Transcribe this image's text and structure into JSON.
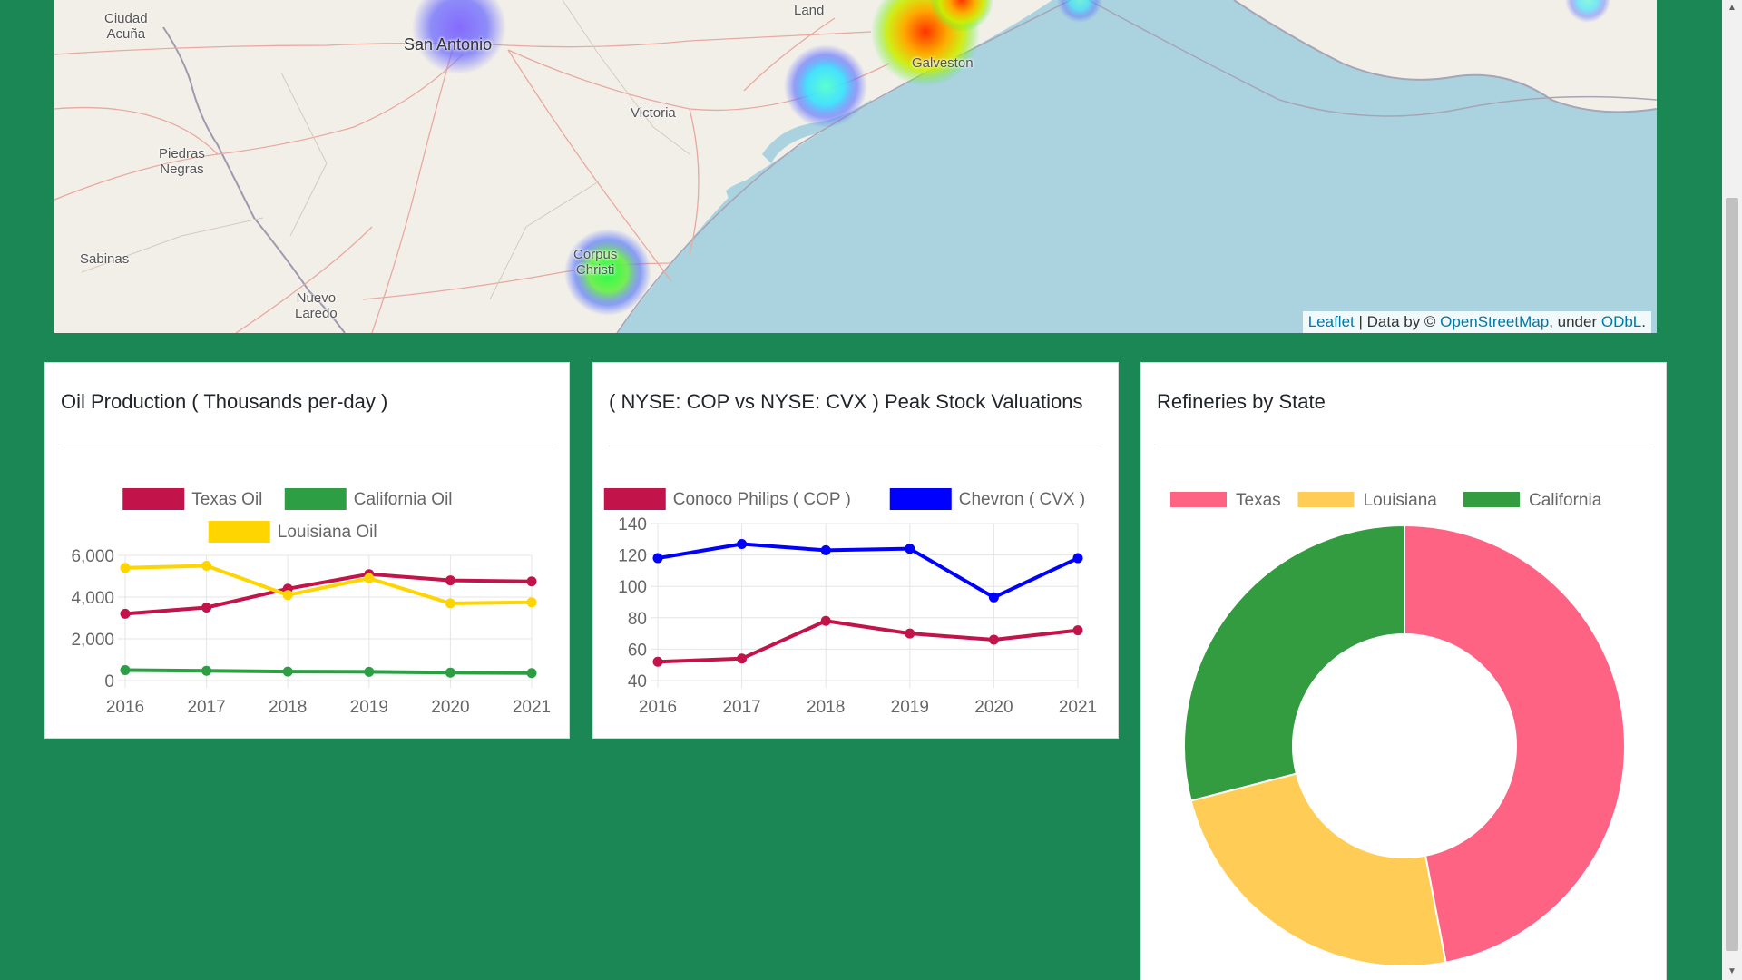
{
  "map": {
    "places": [
      {
        "name": "Ciudad\nAcuña",
        "size": "small"
      },
      {
        "name": "San Antonio",
        "size": "big"
      },
      {
        "name": "Land",
        "size": "small"
      },
      {
        "name": "Galveston",
        "size": "small"
      },
      {
        "name": "Victoria",
        "size": "small"
      },
      {
        "name": "Piedras\nNegras",
        "size": "small"
      },
      {
        "name": "Sabinas",
        "size": "small"
      },
      {
        "name": "Nuevo\nLaredo",
        "size": "small"
      },
      {
        "name": "Corpus\nChristi",
        "size": "small"
      }
    ],
    "attribution": {
      "leaflet": "Leaflet",
      "data_by": " | Data by © ",
      "osm": "OpenStreetMap",
      "under": ", under ",
      "odbl": "ODbL",
      "end": "."
    }
  },
  "cards": {
    "oil": {
      "title": "Oil Production ( Thousands per-day )"
    },
    "stock": {
      "title": "( NYSE: COP vs NYSE: CVX ) Peak Stock Valuations"
    },
    "refineries": {
      "title": "Refineries by State"
    }
  },
  "chart_data": [
    {
      "type": "line",
      "title": "Oil Production ( Thousands per-day )",
      "x": [
        "2016",
        "2017",
        "2018",
        "2019",
        "2020",
        "2021"
      ],
      "ylim": [
        0,
        6000
      ],
      "yticks": [
        "6,000",
        "4,000",
        "2,000",
        "0"
      ],
      "legend": "top",
      "grid": true,
      "series": [
        {
          "name": "Texas Oil",
          "color": "#c2134a",
          "values": [
            3200,
            3500,
            4400,
            5100,
            4800,
            4750
          ]
        },
        {
          "name": "California Oil",
          "color": "#2e9e45",
          "values": [
            500,
            470,
            430,
            420,
            380,
            360
          ]
        },
        {
          "name": "Louisiana Oil",
          "color": "#ffd500",
          "values": [
            5400,
            5500,
            4100,
            4900,
            3700,
            3750
          ]
        }
      ]
    },
    {
      "type": "line",
      "title": "( NYSE: COP vs NYSE: CVX ) Peak Stock Valuations",
      "x": [
        "2016",
        "2017",
        "2018",
        "2019",
        "2020",
        "2021"
      ],
      "ylim": [
        40,
        140
      ],
      "yticks": [
        "140",
        "120",
        "100",
        "80",
        "60",
        "40"
      ],
      "legend": "top",
      "grid": true,
      "series": [
        {
          "name": "Conoco Philips ( COP )",
          "color": "#c2134a",
          "values": [
            52,
            54,
            78,
            70,
            66,
            72
          ]
        },
        {
          "name": "Chevron ( CVX )",
          "color": "#0000ff",
          "values": [
            118,
            127,
            123,
            124,
            93,
            118
          ]
        }
      ]
    },
    {
      "type": "pie",
      "title": "Refineries by State",
      "legend": "top",
      "donut": true,
      "categories": [
        "Texas",
        "Louisiana",
        "California"
      ],
      "colors": [
        "#ff6384",
        "#ffcd56",
        "#339c40"
      ],
      "values": [
        47,
        24,
        29
      ]
    }
  ]
}
